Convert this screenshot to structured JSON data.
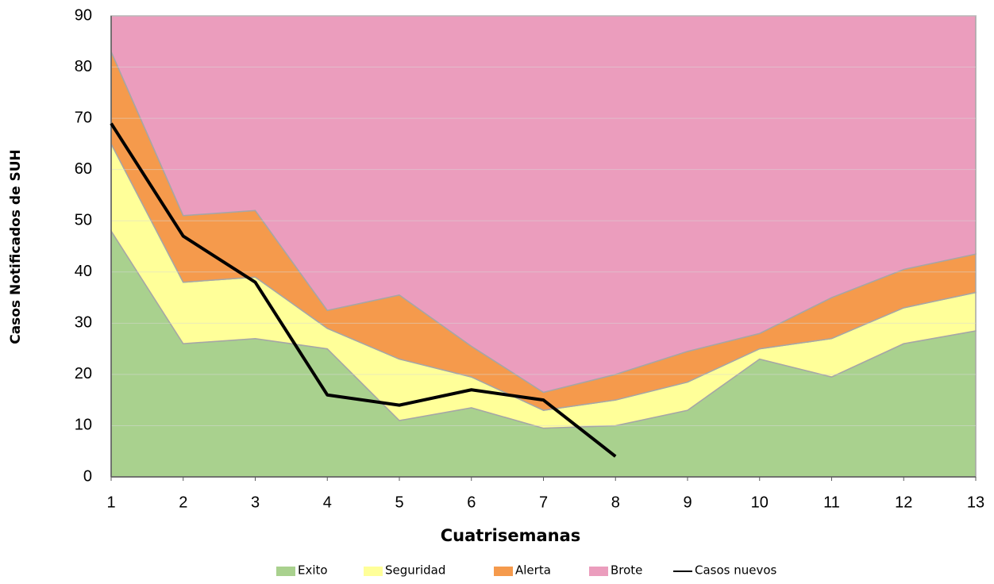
{
  "chart_data": {
    "type": "stacked_area_line",
    "x_label": "Cuatrisemanas",
    "y_label": "Casos Notificados de SUH",
    "x": [
      1,
      2,
      3,
      4,
      5,
      6,
      7,
      8,
      9,
      10,
      11,
      12,
      13
    ],
    "xlim": [
      1,
      13
    ],
    "xticks": [
      1,
      2,
      3,
      4,
      5,
      6,
      7,
      8,
      9,
      10,
      11,
      12,
      13
    ],
    "ylim": [
      0,
      90
    ],
    "yticks": [
      0,
      10,
      20,
      30,
      40,
      50,
      60,
      70,
      80,
      90
    ],
    "grid": true,
    "legend": "bottom",
    "series": [
      {
        "name": "Exito",
        "color": "#a9d18e",
        "values": [
          48,
          26,
          27,
          25,
          11,
          13.5,
          9.5,
          10,
          13,
          23,
          19.5,
          26,
          28.5
        ]
      },
      {
        "name": "Seguridad",
        "color": "#ffff99",
        "values": [
          17,
          12,
          12,
          4,
          12,
          6,
          3.5,
          5,
          5.5,
          2,
          7.5,
          7,
          7.5
        ]
      },
      {
        "name": "Alerta",
        "color": "#f59a4c",
        "values": [
          18,
          13,
          13,
          3.5,
          12.5,
          6,
          3.5,
          5,
          6,
          3,
          8,
          7.5,
          7.5
        ]
      },
      {
        "name": "Brote",
        "color": "#eb9dbd",
        "values": [
          7,
          39,
          38,
          57.5,
          54.5,
          64.5,
          73.5,
          70,
          65.5,
          62,
          55,
          49.5,
          46.5
        ]
      },
      {
        "name": "Casos nuevos",
        "type": "line",
        "color": "#000000",
        "values": [
          69,
          47,
          38,
          16,
          14,
          17,
          15,
          4,
          null,
          null,
          null,
          null,
          null
        ]
      }
    ]
  }
}
